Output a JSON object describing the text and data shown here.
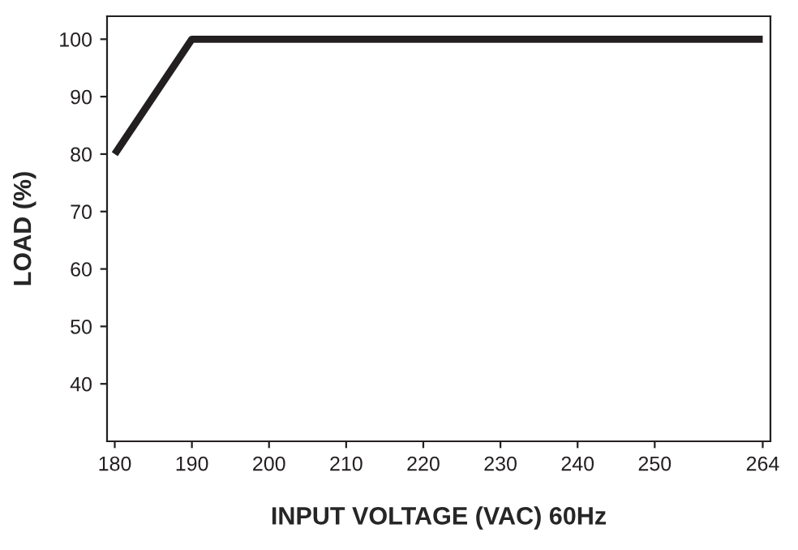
{
  "chart_data": {
    "type": "line",
    "xlabel": "INPUT VOLTAGE (VAC) 60Hz",
    "ylabel": "LOAD (%)",
    "series": [
      {
        "color": "#231f20",
        "x": [
          180,
          190,
          264
        ],
        "values": [
          80,
          100,
          100
        ]
      }
    ],
    "xlim": [
      179,
      265
    ],
    "xticks": [
      180,
      190,
      200,
      210,
      220,
      230,
      240,
      250,
      264
    ],
    "ylim": [
      30,
      104
    ],
    "yticks": [
      40,
      50,
      60,
      70,
      80,
      90,
      100
    ],
    "grid": false,
    "legend": false,
    "marker": "none",
    "line_style": "solid"
  }
}
